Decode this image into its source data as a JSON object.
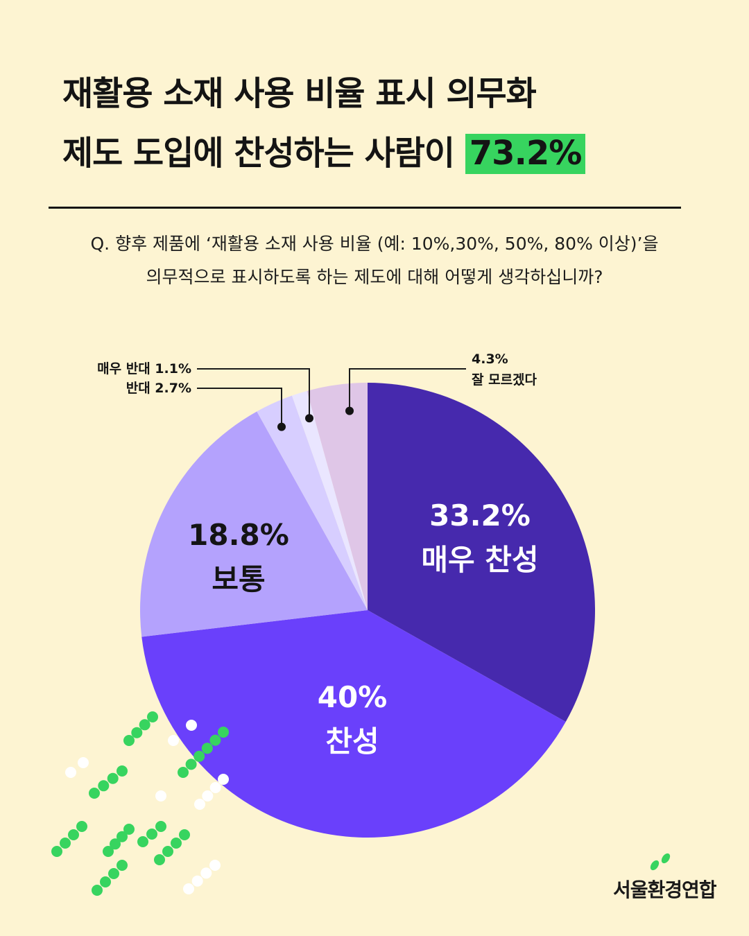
{
  "title": {
    "line1": "재활용 소재 사용 비율 표시 의무화",
    "line2_prefix": "제도 도입에 찬성하는 사람이",
    "highlight": "73.2%",
    "highlight_color": "#37d45f"
  },
  "question": {
    "line1": "Q. 향후 제품에 ‘재활용 소재 사용 비율 (예: 10%,30%, 50%, 80% 이상)’을",
    "line2": "의무적으로 표시하도록 하는 제도에 대해 어떻게 생각하십니까?"
  },
  "chart_data": {
    "type": "pie",
    "start_angle": "12 o'clock",
    "direction": "clockwise",
    "slices": [
      {
        "name": "매우 찬성",
        "value": 33.2,
        "label": "33.2%",
        "color": "#4629ad"
      },
      {
        "name": "찬성",
        "value": 40,
        "label": "40%",
        "color": "#6a40fb"
      },
      {
        "name": "보통",
        "value": 18.8,
        "label": "18.8%",
        "color": "#b4a2fd"
      },
      {
        "name": "반대",
        "value": 2.7,
        "label": "반대 2.7%",
        "color": "#d7ceff"
      },
      {
        "name": "매우 반대",
        "value": 1.1,
        "label": "매우 반대 1.1%",
        "color": "#eae6ff"
      },
      {
        "name": "잘 모르겠다",
        "value": 4.3,
        "label": "4.3%",
        "color": "#dfc6e7"
      }
    ]
  },
  "logo": {
    "text": "서울환경연합",
    "accent": "#37d45f"
  }
}
